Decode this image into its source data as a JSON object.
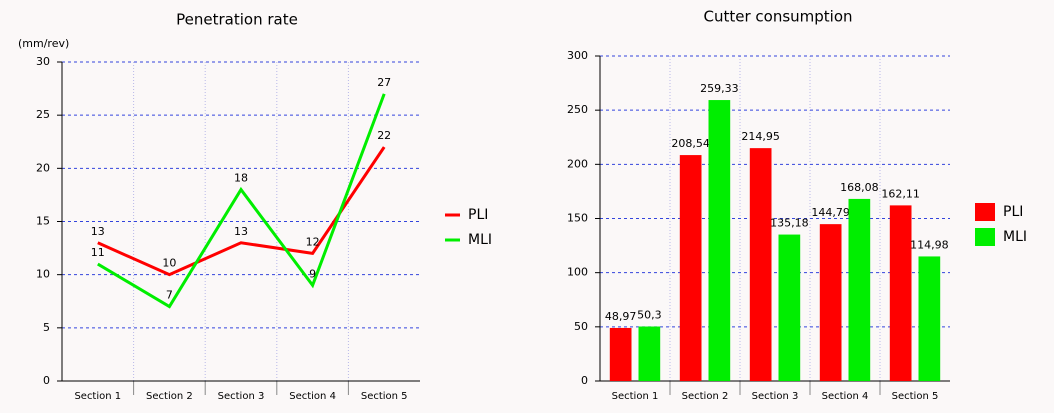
{
  "chart_data": [
    {
      "type": "line",
      "title": "Penetration rate",
      "y_label": "(mm/rev)",
      "categories": [
        "Section 1",
        "Section 2",
        "Section 3",
        "Section 4",
        "Section 5"
      ],
      "series": [
        {
          "name": "PLI",
          "color": "#ff0000",
          "values": [
            13,
            10,
            13,
            12,
            22
          ]
        },
        {
          "name": "MLI",
          "color": "#00ee00",
          "values": [
            11,
            7,
            18,
            9,
            27
          ]
        }
      ],
      "ylim": [
        0,
        30
      ],
      "yticks": [
        0,
        5,
        10,
        15,
        20,
        25,
        30
      ],
      "grid": true
    },
    {
      "type": "bar",
      "title": "Cutter consumption",
      "categories": [
        "Section 1",
        "Section 2",
        "Section 3",
        "Section 4",
        "Section 5"
      ],
      "series": [
        {
          "name": "PLI",
          "color": "#ff0000",
          "values": [
            48.97,
            208.54,
            214.95,
            144.79,
            162.11
          ],
          "value_labels": [
            "48,97",
            "208,54",
            "214,95",
            "144,79",
            "162,11"
          ]
        },
        {
          "name": "MLI",
          "color": "#00ee00",
          "values": [
            50.3,
            259.33,
            135.18,
            168.08,
            114.98
          ],
          "value_labels": [
            "50,3",
            "259,33",
            "135,18",
            "168,08",
            "114,98"
          ]
        }
      ],
      "ylim": [
        0,
        300
      ],
      "yticks": [
        0,
        50,
        100,
        150,
        200,
        250,
        300
      ],
      "grid": true
    }
  ]
}
